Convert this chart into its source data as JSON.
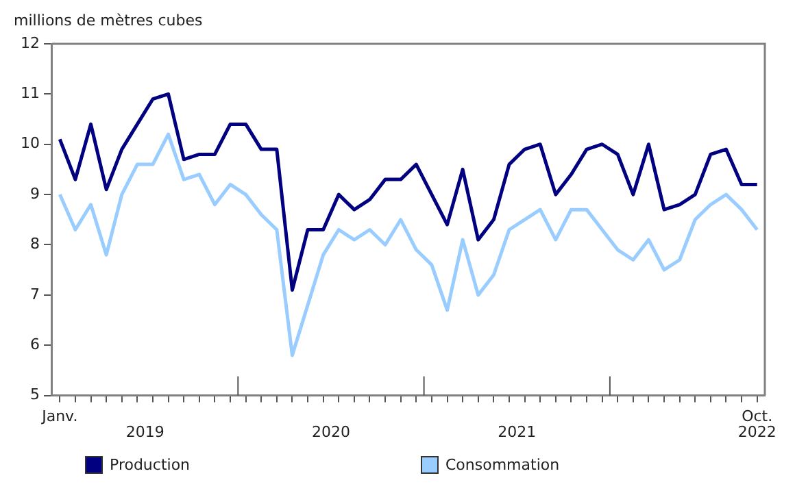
{
  "chart_data": {
    "type": "line",
    "ylabel": "millions de mètres cubes",
    "categories": [
      "Janv.",
      null,
      null,
      null,
      null,
      null,
      null,
      null,
      null,
      null,
      null,
      null,
      null,
      null,
      null,
      null,
      null,
      null,
      null,
      null,
      null,
      null,
      null,
      null,
      null,
      null,
      null,
      null,
      null,
      null,
      null,
      null,
      null,
      null,
      null,
      null,
      null,
      null,
      null,
      null,
      null,
      null,
      null,
      null,
      null,
      "Oct."
    ],
    "series": [
      {
        "name": "Production",
        "color": "#000080",
        "values": [
          10.1,
          9.3,
          10.4,
          9.1,
          9.9,
          10.4,
          10.9,
          11.0,
          9.7,
          9.8,
          9.8,
          10.4,
          10.4,
          9.9,
          9.9,
          7.1,
          8.3,
          8.3,
          9.0,
          8.7,
          8.9,
          9.3,
          9.3,
          9.6,
          9.0,
          8.4,
          9.5,
          8.1,
          8.5,
          9.6,
          9.9,
          10.0,
          9.0,
          9.4,
          9.9,
          10.0,
          9.8,
          9.0,
          10.0,
          8.7,
          8.8,
          9.0,
          9.8,
          9.9,
          9.2,
          9.2
        ]
      },
      {
        "name": "Consommation",
        "color": "#99ccff",
        "values": [
          9.0,
          8.3,
          8.8,
          7.8,
          9.0,
          9.6,
          9.6,
          10.2,
          9.3,
          9.4,
          8.8,
          9.2,
          9.0,
          8.6,
          8.3,
          5.8,
          6.8,
          7.8,
          8.3,
          8.1,
          8.3,
          8.0,
          8.5,
          7.9,
          7.6,
          6.7,
          8.1,
          7.0,
          7.4,
          8.3,
          8.5,
          8.7,
          8.1,
          8.7,
          8.7,
          8.3,
          7.9,
          7.7,
          8.1,
          7.5,
          7.7,
          8.5,
          8.8,
          9.0,
          8.7,
          8.3
        ]
      }
    ],
    "annotations": [
      "2019",
      "2020",
      "2021",
      "2022"
    ],
    "ylim": [
      5,
      12
    ],
    "yticks": [
      5,
      6,
      7,
      8,
      9,
      10,
      11,
      12
    ],
    "grid": false,
    "legend": "bottom",
    "marker": "none",
    "line_style": "solid"
  }
}
